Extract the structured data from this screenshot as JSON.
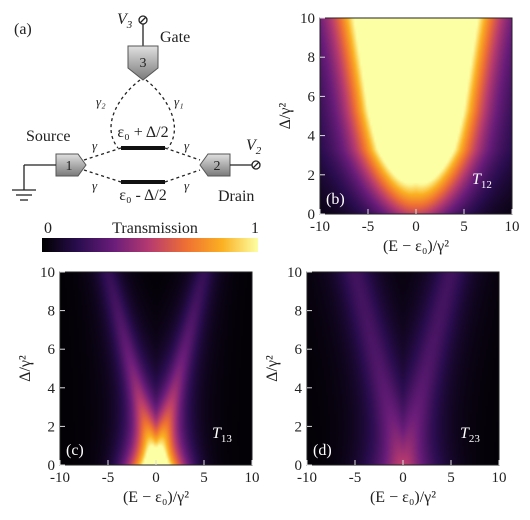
{
  "schematic": {
    "panel_label": "(a)",
    "gate_voltage": "V",
    "gate_voltage_sub": "3",
    "gate_label": "Gate",
    "gate_terminal": "3",
    "source_label": "Source",
    "source_terminal": "1",
    "drain_label": "Drain",
    "drain_terminal": "2",
    "drain_voltage": "V",
    "drain_voltage_sub": "2",
    "upper_level": "ε₀ + Δ/2",
    "lower_level": "ε₀ - Δ/2",
    "coupling": "γ",
    "coupling_gate_left": "γ₂",
    "coupling_gate_right": "γ₁"
  },
  "colorbar": {
    "title": "Transmission",
    "min_label": "0",
    "max_label": "1",
    "colormap": [
      "#000000",
      "#2a0d4f",
      "#6a1d7a",
      "#b73b6f",
      "#ef6f33",
      "#fbb021",
      "#fcffa4"
    ]
  },
  "axes": {
    "x_title": "(E − ε₀)/γ²",
    "y_title": "Δ/γ²",
    "x_ticks": [
      "-10",
      "-5",
      "0",
      "5",
      "10"
    ],
    "y_ticks": [
      "0",
      "2",
      "4",
      "6",
      "8",
      "10"
    ]
  },
  "chart_data": [
    {
      "type": "heatmap",
      "panel": "(b)",
      "label": "T",
      "label_sub": "12",
      "xlabel": "(E − ε₀)/γ²",
      "ylabel": "Δ/γ²",
      "xlim": [
        -10,
        10
      ],
      "ylim": [
        0,
        10
      ],
      "peak_value": 1.0,
      "description_values": {
        "branch_width": 4.0,
        "branch_intensity": 0.85,
        "center_intensity": 1.0
      }
    },
    {
      "type": "heatmap",
      "panel": "(c)",
      "label": "T",
      "label_sub": "13",
      "xlabel": "(E − ε₀)/γ²",
      "ylabel": "Δ/γ²",
      "xlim": [
        -10,
        10
      ],
      "ylim": [
        0,
        10
      ],
      "peak_value": 0.85,
      "description_values": {
        "branch_width": 1.6,
        "branch_intensity": 0.6,
        "center_intensity": 0.85
      }
    },
    {
      "type": "heatmap",
      "panel": "(d)",
      "label": "T",
      "label_sub": "23",
      "xlabel": "(E − ε₀)/γ²",
      "ylabel": "Δ/γ²",
      "xlim": [
        -10,
        10
      ],
      "ylim": [
        0,
        10
      ],
      "peak_value": 0.35,
      "description_values": {
        "branch_width": 2.4,
        "branch_intensity": 0.3,
        "center_intensity": 0.3
      }
    }
  ]
}
